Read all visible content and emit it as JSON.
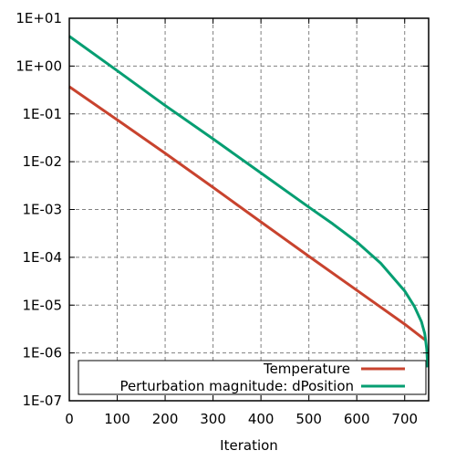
{
  "chart_data": {
    "type": "line",
    "title": "",
    "xlabel": "Iteration",
    "ylabel": "",
    "xlim": [
      0,
      750
    ],
    "ylim": [
      1e-07,
      10
    ],
    "yscale": "log",
    "grid": true,
    "legend_position": "bottom-right",
    "x_ticks": [
      0,
      100,
      200,
      300,
      400,
      500,
      600,
      700
    ],
    "x_tick_labels": [
      "0",
      "100",
      "200",
      "300",
      "400",
      "500",
      "600",
      "700"
    ],
    "y_ticks": [
      1e-07,
      1e-06,
      1e-05,
      0.0001,
      0.001,
      0.01,
      0.1,
      1,
      10
    ],
    "y_tick_labels": [
      "1E-07",
      "1E-06",
      "1E-05",
      "1E-04",
      "1E-03",
      "1E-02",
      "1E-01",
      "1E+00",
      "1E+01"
    ],
    "series": [
      {
        "name": "Temperature",
        "color": "#c8432e",
        "x": [
          0,
          100,
          200,
          300,
          400,
          500,
          600,
          700,
          745
        ],
        "y": [
          0.37,
          0.075,
          0.015,
          0.0029,
          0.00055,
          0.000105,
          2.05e-05,
          4e-06,
          1.8e-06
        ]
      },
      {
        "name": "Perturbation magnitude: dPosition",
        "color": "#069e72",
        "x": [
          0,
          100,
          200,
          300,
          400,
          500,
          550,
          600,
          650,
          700,
          720,
          735,
          742,
          746,
          748
        ],
        "y": [
          4.2,
          0.8,
          0.15,
          0.03,
          0.0058,
          0.00112,
          0.0005,
          0.00021,
          7.5e-05,
          1.98e-05,
          9.5e-06,
          4.5e-06,
          2.5e-06,
          1.2e-06,
          5e-07
        ]
      }
    ]
  }
}
